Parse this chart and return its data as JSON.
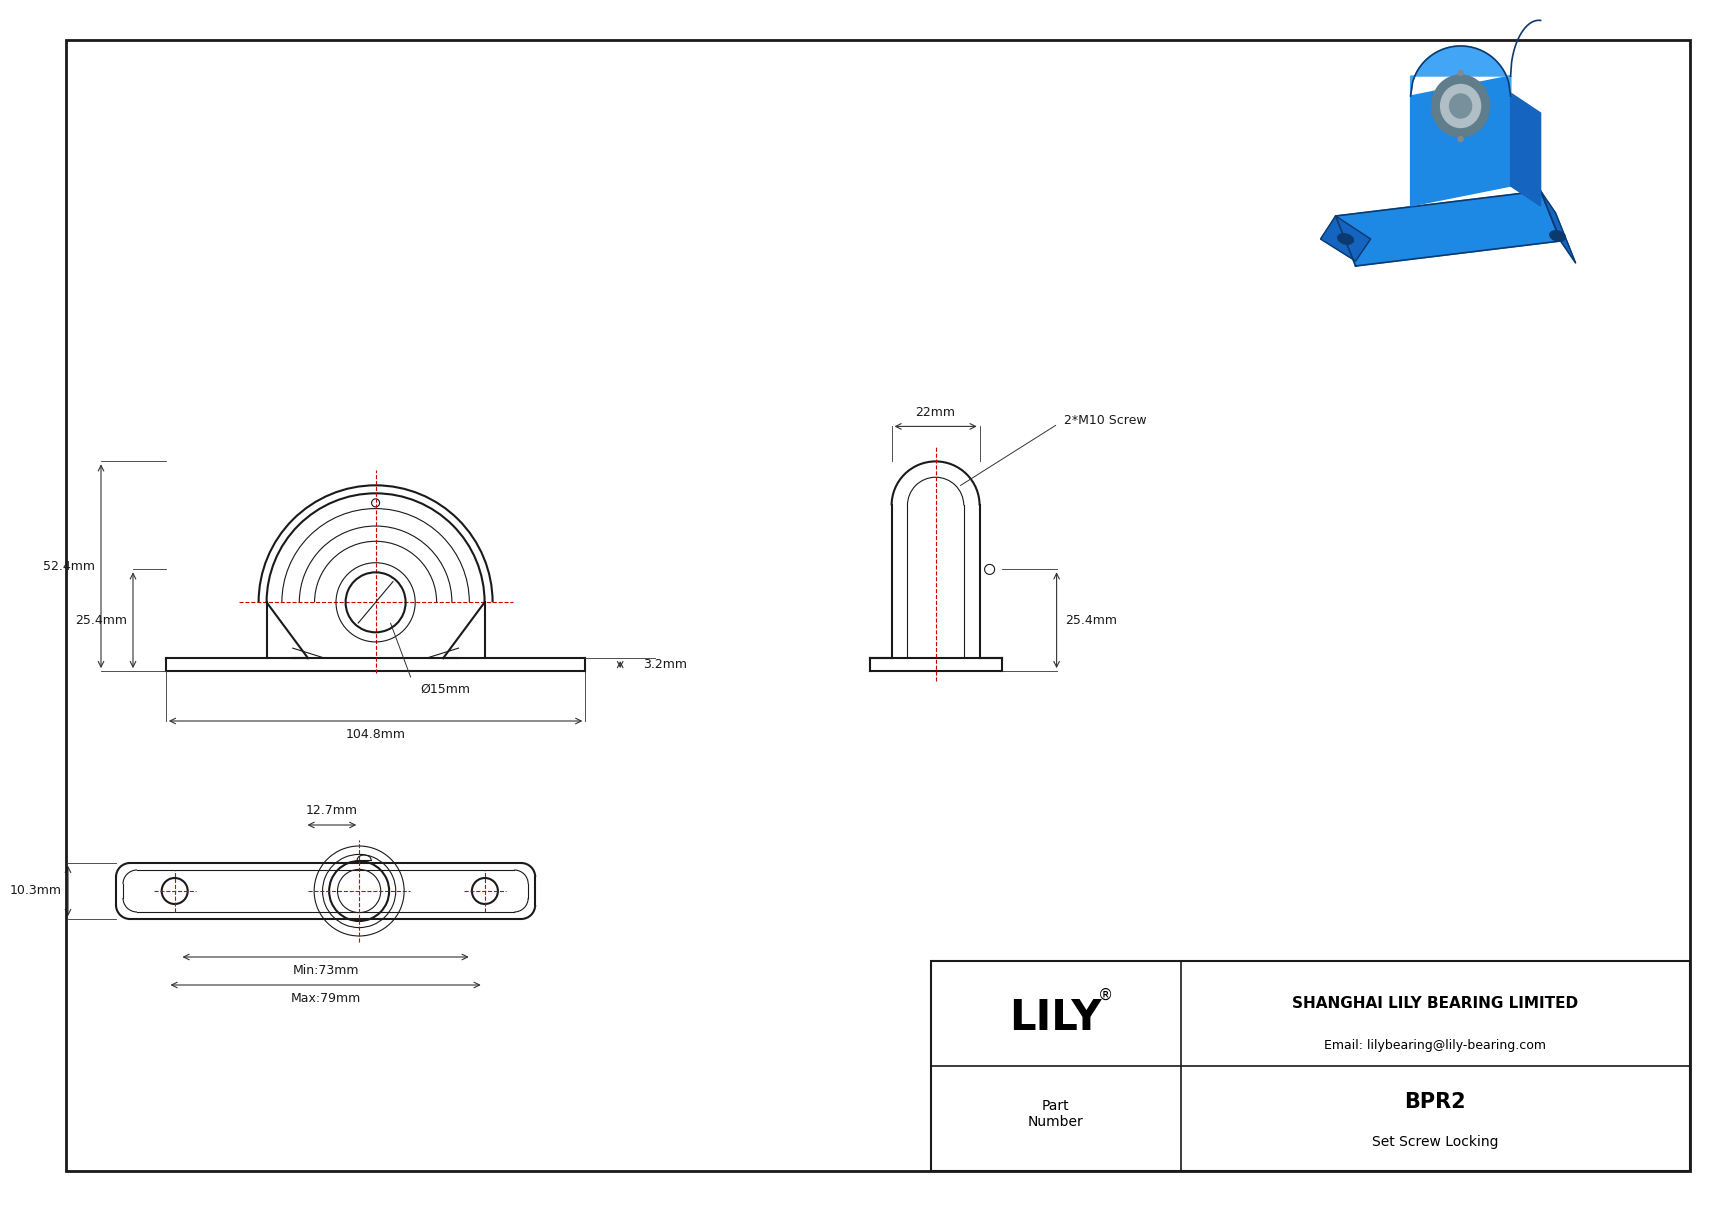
{
  "bg_color": "#ffffff",
  "line_color": "#1a1a1a",
  "dim_color": "#333333",
  "red_color": "#cc0000",
  "title_block": {
    "company": "SHANGHAI LILY BEARING LIMITED",
    "email": "Email: lilybearing@lily-bearing.com",
    "part_label": "Part\nNumber",
    "part_number": "BPR2",
    "locking": "Set Screw Locking",
    "brand": "LILY"
  },
  "dims": {
    "height_total": "52.4mm",
    "height_base": "25.4mm",
    "width_total": "104.8mm",
    "bore": "Ø15mm",
    "base_thickness": "3.2mm",
    "side_width": "22mm",
    "side_height": "25.4mm",
    "bolt_label": "2*M10 Screw",
    "top_bolt_spacing_min": "Min:73mm",
    "top_bolt_spacing_max": "Max:79mm",
    "top_offset": "12.7mm",
    "top_height": "10.3mm"
  }
}
